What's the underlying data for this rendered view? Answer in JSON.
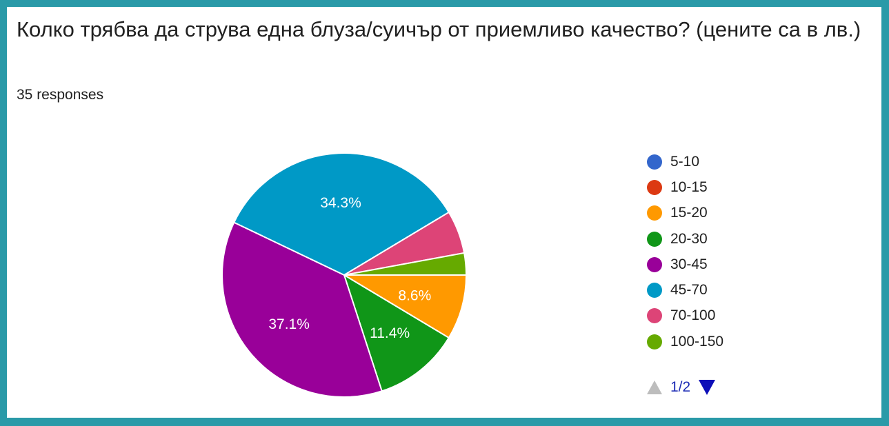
{
  "question": {
    "title": "Колко трябва да струва една блуза/суичър от приемливо качество? (цените са в лв.)",
    "responses": "35 responses"
  },
  "pager": {
    "text": "1/2",
    "up_icon": "triangle-up-icon",
    "down_icon": "triangle-down-icon"
  },
  "chart_data": {
    "type": "pie",
    "categories": [
      "5-10",
      "10-15",
      "15-20",
      "20-30",
      "30-45",
      "45-70",
      "70-100",
      "100-150"
    ],
    "values": [
      0,
      0,
      8.6,
      11.4,
      37.1,
      34.3,
      5.7,
      2.9
    ],
    "labels": [
      "",
      "",
      "8.6%",
      "11.4%",
      "37.1%",
      "34.3%",
      "",
      ""
    ],
    "colors": [
      "#3366cc",
      "#dc3912",
      "#ff9900",
      "#109618",
      "#990099",
      "#0099c6",
      "#dd4477",
      "#66aa00"
    ],
    "legend": "right"
  }
}
